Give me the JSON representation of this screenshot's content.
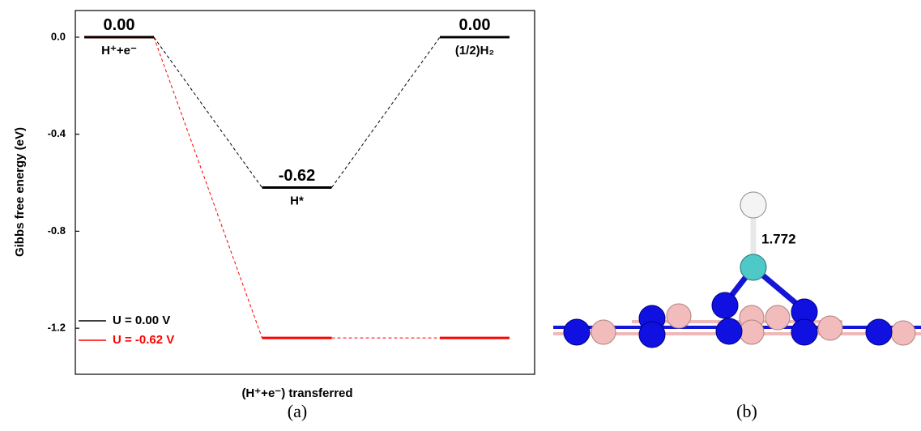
{
  "chart_data": {
    "type": "level",
    "y_label": "Gibbs free energy (eV)",
    "x_label": "(H⁺+e⁻) transferred",
    "categories": [
      "H⁺+e⁻",
      "H*",
      "(1/2)H₂"
    ],
    "series": [
      {
        "name": "U = 0.00 V",
        "color": "#000000",
        "values": [
          0,
          -0.62,
          0
        ],
        "value_labels": [
          "0.00",
          "-0.62",
          "0.00"
        ]
      },
      {
        "name": "U = -0.62 V",
        "color": "#ff0000",
        "values": [
          0,
          -1.24,
          -1.24
        ]
      }
    ],
    "ylim": [
      -1.39,
      0.11
    ],
    "yticks": [
      {
        "value": 0,
        "label": "0.0"
      },
      -0.4,
      -0.8,
      -1.2
    ],
    "legend": "lower left"
  },
  "panel_labels": [
    "(a)",
    "(b)"
  ],
  "structure": {
    "bond_length_label": "1.772"
  }
}
